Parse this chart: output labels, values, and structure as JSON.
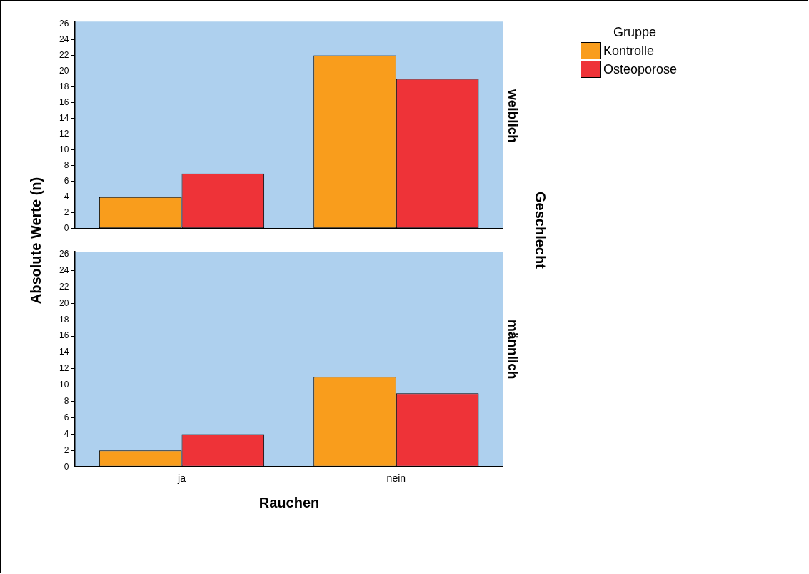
{
  "chart_data": [
    {
      "type": "bar",
      "title": "weiblich",
      "ylabel": "Absolute Werte (n)",
      "y2label": "Geschlecht",
      "legend_title": "Gruppe",
      "legend": "top right",
      "tick_labels": "y",
      "categories": [
        null,
        null
      ],
      "series": [
        {
          "name": "Kontrolle",
          "color": "#f99d1c",
          "values": [
            4,
            22
          ]
        },
        {
          "name": "Osteoporose",
          "color": "#ee3338",
          "values": [
            7,
            19
          ]
        }
      ],
      "ylim": [
        0,
        26.3
      ],
      "yticks": [
        0,
        2,
        4,
        6,
        8,
        10,
        12,
        14,
        16,
        18,
        20,
        22,
        24,
        26
      ]
    },
    {
      "type": "bar",
      "title": "männlich",
      "xlabel": "Rauchen",
      "categories": [
        "ja",
        "nein"
      ],
      "series": [
        {
          "color": "#f99d1c",
          "values": [
            2,
            11
          ]
        },
        {
          "color": "#ee3338",
          "values": [
            4,
            9
          ]
        }
      ],
      "ylim": [
        0,
        26.3
      ],
      "yticks": [
        0,
        2,
        4,
        6,
        8,
        10,
        12,
        14,
        16,
        18,
        20,
        22,
        24,
        26
      ]
    }
  ]
}
